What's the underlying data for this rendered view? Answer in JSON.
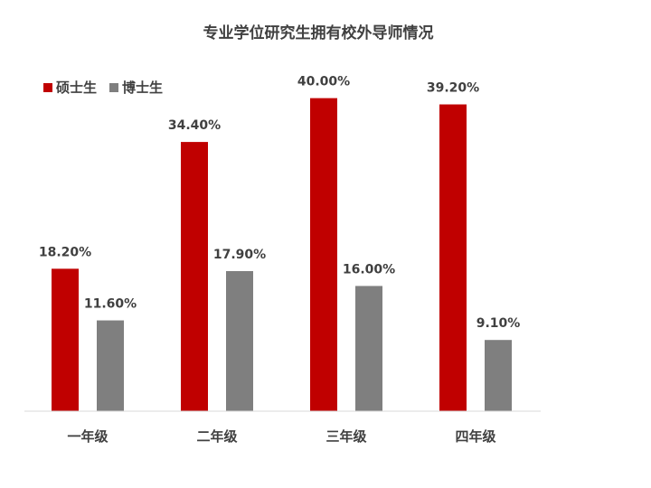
{
  "chart_data": {
    "type": "bar",
    "title": "专业学位研究生拥有校外导师情况",
    "categories": [
      "一年级",
      "二年级",
      "三年级",
      "四年级"
    ],
    "series": [
      {
        "name": "硕士生",
        "color": "#c00000",
        "values": [
          18.2,
          34.4,
          40.0,
          39.2
        ],
        "labels": [
          "18.20%",
          "34.40%",
          "40.00%",
          "39.20%"
        ]
      },
      {
        "name": "博士生",
        "color": "#7f7f7f",
        "values": [
          11.6,
          17.9,
          16.0,
          9.1
        ],
        "labels": [
          "11.60%",
          "17.90%",
          "16.00%",
          "9.10%"
        ]
      }
    ],
    "ylim": [
      0,
      45
    ],
    "grid": false,
    "legend_position": "top-left"
  }
}
